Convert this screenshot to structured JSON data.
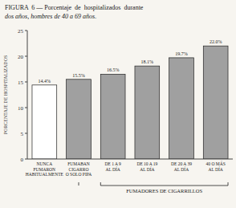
{
  "chart_data": {
    "type": "bar",
    "title": "FIGURA  6 — Porcentaje  de  hospitalizados  durante",
    "subtitle": "dos años, hombres de 40 a 69 años.",
    "categories": [
      "NUNCA\nFUMARON\nHABITUALMENTE",
      "FUMABAN\nCIGARRO\nO SOLO PIPA",
      "DE 1 A 9\nAL DÍA",
      "DE 10 A 19\nAL DÍA",
      "DE 20 A 39\nAL DÍA",
      "40 O MÁS\nAL DÍA"
    ],
    "values": [
      14.4,
      15.5,
      16.5,
      18.1,
      19.7,
      22.0
    ],
    "value_labels": [
      "14.4%",
      "15.5%",
      "16.5%",
      "18.1%",
      "19.7%",
      "22.0%"
    ],
    "data_labels": true,
    "colors": [
      "#ffffff",
      "#a0a0a0",
      "#a0a0a0",
      "#a0a0a0",
      "#a0a0a0",
      "#a0a0a0"
    ],
    "ylabel": "PORCENTAJE DE HOSPITALIZADOS",
    "ylim": [
      0,
      25
    ],
    "yticks": [
      0,
      5,
      10,
      15,
      20,
      25
    ],
    "grid": false,
    "annotations": [
      {
        "text": "FUMADORES DE CIGARRILLOS"
      }
    ]
  }
}
